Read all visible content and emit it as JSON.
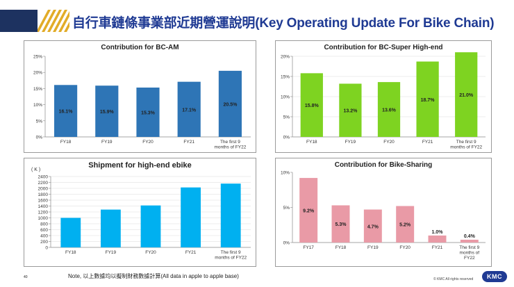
{
  "page": {
    "title": "自行車鏈條事業部近期營運說明(Key Operating Update For Bike Chain)",
    "note": "Note, 以上數據均以擬制財務數據計算(All data in apple to apple base)",
    "page_number": "40",
    "copyright": "© KMC All rights reserved",
    "logo_text": "KMC",
    "header_color": "#1d3260",
    "stripe_color": "#e2ac28"
  },
  "chart_data": [
    {
      "id": "bc-am",
      "type": "bar",
      "title": "Contribution for BC-AM",
      "categories": [
        "FY18",
        "FY19",
        "FY20",
        "FY21",
        "The first 9|months of FY22"
      ],
      "values": [
        16.1,
        15.9,
        15.3,
        17.1,
        20.5
      ],
      "value_labels": [
        "16.1%",
        "15.9%",
        "15.3%",
        "17.1%",
        "20.5%"
      ],
      "y_ticks": [
        "0%",
        "5%",
        "10%",
        "15%",
        "20%",
        "25%"
      ],
      "ylim": [
        0,
        25
      ],
      "color": "#2e75b6",
      "grid": false
    },
    {
      "id": "bc-super",
      "type": "bar",
      "title": "Contribution for BC-Super High-end",
      "categories": [
        "FY18",
        "FY19",
        "FY20",
        "FY21",
        "The first 9|months of FY22"
      ],
      "values": [
        15.8,
        13.2,
        13.6,
        18.7,
        21.0
      ],
      "value_labels": [
        "15.8%",
        "13.2%",
        "13.6%",
        "18.7%",
        "21.0%"
      ],
      "y_ticks": [
        "0%",
        "5%",
        "10%",
        "15%",
        "20%"
      ],
      "ylim": [
        0,
        20
      ],
      "color": "#7ed321",
      "grid": true
    },
    {
      "id": "ebike",
      "type": "bar",
      "title": "Shipment for high-end ebike",
      "unit_label": "( K )",
      "categories": [
        "FY18",
        "FY19",
        "FY20",
        "FY21",
        "The first 9|months of FY22"
      ],
      "values": [
        1000,
        1280,
        1420,
        2030,
        2160
      ],
      "value_labels": [],
      "y_ticks": [
        "0",
        "200",
        "400",
        "600",
        "800",
        "1000",
        "1200",
        "1400",
        "1600",
        "1800",
        "2000",
        "2200",
        "2400"
      ],
      "ylim": [
        0,
        2400
      ],
      "color": "#00b0f0",
      "grid": true
    },
    {
      "id": "bike-sharing",
      "type": "bar",
      "title": "Contribution for Bike-Sharing",
      "categories": [
        "FY17",
        "FY18",
        "FY19",
        "FY20",
        "FY21",
        "The first 9|months of|FY22"
      ],
      "values": [
        9.2,
        5.3,
        4.7,
        5.2,
        1.0,
        0.4
      ],
      "value_labels": [
        "9.2%",
        "5.3%",
        "4.7%",
        "5.2%",
        "1.0%",
        "0.4%"
      ],
      "y_ticks": [
        "0%",
        "5%",
        "10%"
      ],
      "ylim": [
        0,
        10
      ],
      "color": "#e99aa6",
      "grid": false
    }
  ]
}
